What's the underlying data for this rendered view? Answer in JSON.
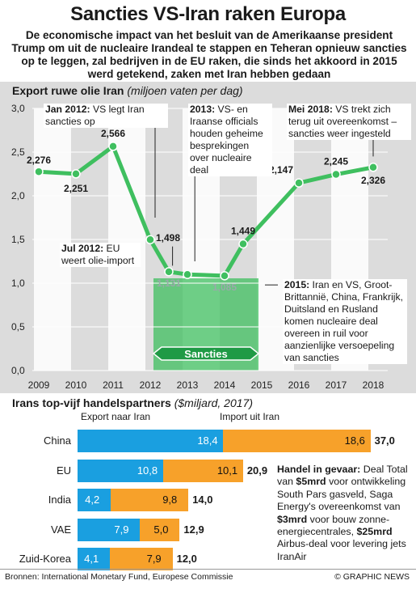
{
  "title": "Sancties VS-Iran raken Europa",
  "intro": "De economische impact van het besluit van de Amerikaanse president Trump om uit de nucleaire Irandeal te stappen en Teheran opnieuw sancties op te leggen, zal bedrijven in de EU raken, die sinds het akkoord in 2015 werd getekend, zaken met Iran hebben gedaan",
  "chart_data": [
    {
      "type": "line",
      "title": "Export ruwe olie Iran",
      "subtitle": "(miljoen vaten per dag)",
      "x": [
        2009,
        2010,
        2011,
        2012,
        2012.5,
        2013,
        2014,
        2014.5,
        2016,
        2017,
        2018
      ],
      "values": [
        2.276,
        2.251,
        2.566,
        1.498,
        1.131,
        1.1,
        1.085,
        1.449,
        2.147,
        2.245,
        2.326
      ],
      "point_labels": [
        "2,276",
        "2,251",
        "2,566",
        "1,498",
        "1,131",
        "",
        "1,085",
        "1,449",
        "2,147",
        "2,245",
        "2,326"
      ],
      "x_ticks": [
        "2009",
        "2010",
        "2011",
        "2012",
        "2013",
        "2014",
        "2015",
        "2016",
        "2017",
        "2018"
      ],
      "y_ticks": [
        "3,0",
        "2,5",
        "2,0",
        "1,5",
        "1,0",
        "0,5",
        "0,0"
      ],
      "ylim": [
        0,
        3.0
      ],
      "sanctions_period": {
        "from": 2012,
        "to": 2015,
        "label": "Sancties"
      },
      "colors": {
        "line": "#3fbf5f",
        "band": "#3fbf5f",
        "grid": "#ffffff"
      }
    },
    {
      "type": "bar",
      "title": "Irans top-vijf handelspartners",
      "subtitle": "($miljard, 2017)",
      "categories": [
        "China",
        "EU",
        "India",
        "VAE",
        "Zuid-Korea"
      ],
      "series": [
        {
          "name": "Export naar Iran",
          "values": [
            18.4,
            10.8,
            4.2,
            7.9,
            4.1
          ],
          "labels": [
            "18,4",
            "10,8",
            "4,2",
            "7,9",
            "4,1"
          ],
          "color": "#1a9fe0"
        },
        {
          "name": "Import uit Iran",
          "values": [
            18.6,
            10.1,
            9.8,
            5.0,
            7.9
          ],
          "labels": [
            "18,6",
            "10,1",
            "9,8",
            "5,0",
            "7,9"
          ],
          "color": "#f7a12a"
        }
      ],
      "totals": [
        "37,0",
        "20,9",
        "14,0",
        "12,9",
        "12,0"
      ]
    }
  ],
  "notes": {
    "jan2012_b": "Jan 2012:",
    "jan2012": " VS legt Iran sancties op",
    "jul2012_b": "Jul 2012:",
    "jul2012": " EU weert olie-import",
    "y2013_b": "2013:",
    "y2013": " VS- en Iraanse officials houden geheime besprekingen over nucleaire deal",
    "y2015_b": "2015:",
    "y2015": " Iran en VS, Groot-Brittannië, China, Frankrijk, Duitsland en Rusland komen nucleaire deal overeen in ruil voor aanzienlijke versoepeling van sancties",
    "mei2018_b": "Mei 2018:",
    "mei2018": " VS trekt zich terug uit overeenkomst – sancties weer ingesteld"
  },
  "risk": {
    "head": "Handel in gevaar:",
    "p1": " Deal Total van ",
    "v1": "$5mrd",
    "p2": " voor ontwikkeling South Pars gasveld, Saga Energy's overeenkomst van ",
    "v2": "$3mrd",
    "p3": " voor bouw zonne-energiecentrales, ",
    "v3": "$25mrd",
    "p4": " Airbus-deal voor levering jets IranAir"
  },
  "footer": {
    "sources": "Bronnen:  International Monetary Fund, Europese Commissie",
    "credit": "© GRAPHIC NEWS"
  }
}
